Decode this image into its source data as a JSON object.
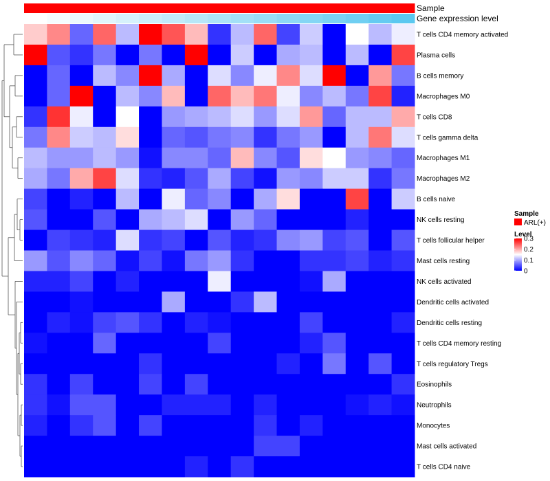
{
  "chart_data": {
    "type": "heatmap",
    "annotation_rows": [
      {
        "label": "Sample",
        "color": "#ff0000"
      },
      {
        "label": "Gene expression level",
        "gradient": [
          "#ffffff",
          "#5bc8f0"
        ]
      }
    ],
    "row_labels": [
      "T cells CD4 memory activated",
      "Plasma cells",
      "B cells memory",
      "Macrophages M0",
      "T cells CD8",
      "T cells gamma delta",
      "Macrophages M1",
      "Macrophages M2",
      "B cells naive",
      "NK cells resting",
      "T cells follicular helper",
      "Mast cells resting",
      "NK cells activated",
      "Dendritic cells activated",
      "Dendritic cells resting",
      "T cells CD4 memory resting",
      "T cells regulatory  Tregs",
      "Eosinophils",
      "Neutrophils",
      "Monocytes",
      "Mast cells activated",
      "T cells CD4 naive"
    ],
    "values": [
      [
        0.18,
        0.22,
        0.06,
        0.24,
        0.11,
        0.3,
        0.25,
        0.19,
        0.03,
        0.11,
        0.24,
        0.04,
        0.12,
        0.0,
        0.15,
        0.11,
        0.14
      ],
      [
        0.3,
        0.05,
        0.03,
        0.07,
        0.0,
        0.07,
        0.0,
        0.3,
        0.0,
        0.12,
        0.0,
        0.1,
        0.11,
        0.0,
        0.11,
        0.0,
        0.26
      ],
      [
        0.0,
        0.06,
        0.0,
        0.11,
        0.08,
        0.3,
        0.1,
        0.0,
        0.13,
        0.08,
        0.14,
        0.22,
        0.13,
        0.3,
        0.0,
        0.21,
        0.07
      ],
      [
        0.0,
        0.06,
        0.3,
        0.0,
        0.11,
        0.08,
        0.19,
        0.0,
        0.24,
        0.19,
        0.23,
        0.14,
        0.08,
        0.11,
        0.07,
        0.26,
        0.02
      ],
      [
        0.03,
        0.27,
        0.14,
        0.0,
        0.15,
        0.0,
        0.09,
        0.1,
        0.11,
        0.13,
        0.09,
        0.13,
        0.21,
        0.06,
        0.11,
        0.11,
        0.2
      ],
      [
        0.07,
        0.22,
        0.12,
        0.11,
        0.17,
        0.0,
        0.06,
        0.05,
        0.07,
        0.08,
        0.03,
        0.07,
        0.09,
        0.0,
        0.11,
        0.23,
        0.13
      ],
      [
        0.11,
        0.09,
        0.09,
        0.11,
        0.09,
        0.01,
        0.08,
        0.08,
        0.06,
        0.19,
        0.08,
        0.05,
        0.17,
        0.15,
        0.09,
        0.08,
        0.06
      ],
      [
        0.1,
        0.07,
        0.2,
        0.26,
        0.13,
        0.03,
        0.02,
        0.05,
        0.1,
        0.04,
        0.01,
        0.09,
        0.08,
        0.12,
        0.12,
        0.03,
        0.07
      ],
      [
        0.04,
        0.0,
        0.02,
        0.0,
        0.11,
        0.0,
        0.14,
        0.06,
        0.08,
        0.0,
        0.1,
        0.17,
        0.0,
        0.0,
        0.26,
        0.0,
        0.12
      ],
      [
        0.05,
        0.0,
        0.0,
        0.05,
        0.0,
        0.1,
        0.11,
        0.13,
        0.0,
        0.09,
        0.06,
        0.0,
        0.0,
        0.0,
        0.02,
        0.0,
        0.0
      ],
      [
        0.0,
        0.04,
        0.03,
        0.02,
        0.13,
        0.03,
        0.04,
        0.0,
        0.05,
        0.02,
        0.03,
        0.08,
        0.09,
        0.04,
        0.05,
        0.0,
        0.05
      ],
      [
        0.09,
        0.05,
        0.08,
        0.06,
        0.01,
        0.04,
        0.01,
        0.07,
        0.09,
        0.03,
        0.0,
        0.0,
        0.03,
        0.03,
        0.04,
        0.02,
        0.03
      ],
      [
        0.02,
        0.02,
        0.04,
        0.0,
        0.02,
        0.0,
        0.0,
        0.0,
        0.14,
        0.0,
        0.0,
        0.0,
        0.01,
        0.1,
        0.0,
        0.0,
        0.0
      ],
      [
        0.0,
        0.0,
        0.01,
        0.0,
        0.0,
        0.0,
        0.1,
        0.0,
        0.0,
        0.03,
        0.11,
        0.0,
        0.0,
        0.0,
        0.0,
        0.0,
        0.0
      ],
      [
        0.0,
        0.02,
        0.01,
        0.04,
        0.05,
        0.03,
        0.0,
        0.02,
        0.01,
        0.0,
        0.0,
        0.0,
        0.04,
        0.0,
        0.0,
        0.0,
        0.02
      ],
      [
        0.01,
        0.0,
        0.0,
        0.06,
        0.0,
        0.0,
        0.0,
        0.0,
        0.04,
        0.0,
        0.0,
        0.0,
        0.02,
        0.05,
        0.0,
        0.0,
        0.0
      ],
      [
        0.0,
        0.0,
        0.0,
        0.0,
        0.0,
        0.03,
        0.0,
        0.0,
        0.0,
        0.0,
        0.0,
        0.02,
        0.0,
        0.07,
        0.0,
        0.05,
        0.0
      ],
      [
        0.03,
        0.0,
        0.04,
        0.0,
        0.0,
        0.04,
        0.0,
        0.04,
        0.0,
        0.0,
        0.0,
        0.0,
        0.0,
        0.0,
        0.0,
        0.0,
        0.03
      ],
      [
        0.03,
        0.01,
        0.05,
        0.05,
        0.0,
        0.0,
        0.02,
        0.02,
        0.02,
        0.0,
        0.02,
        0.0,
        0.0,
        0.0,
        0.01,
        0.02,
        0.01
      ],
      [
        0.02,
        0.0,
        0.03,
        0.05,
        0.0,
        0.04,
        0.0,
        0.0,
        0.0,
        0.0,
        0.03,
        0.0,
        0.02,
        0.0,
        0.0,
        0.0,
        0.0
      ],
      [
        0.0,
        0.0,
        0.0,
        0.0,
        0.0,
        0.0,
        0.0,
        0.0,
        0.0,
        0.0,
        0.04,
        0.04,
        0.0,
        0.0,
        0.0,
        0.0,
        0.0
      ],
      [
        0.0,
        0.0,
        0.0,
        0.0,
        0.0,
        0.0,
        0.0,
        0.02,
        0.0,
        0.03,
        0.0,
        0.0,
        0.0,
        0.0,
        0.0,
        0.0,
        0.0
      ]
    ],
    "color_scale": {
      "low": "#0000ff",
      "mid": "#ffffff",
      "high": "#ff0000",
      "range": [
        0,
        0.3
      ],
      "mid_value": 0.15
    },
    "legend": {
      "sample_title": "Sample",
      "sample_entry": "ARL(+)",
      "sample_color": "#ff0000",
      "level_title": "Level",
      "level_ticks": [
        {
          "value": 0.3,
          "label": "0.3"
        },
        {
          "value": 0.2,
          "label": "0.2"
        },
        {
          "value": 0.1,
          "label": "0.1"
        },
        {
          "value": 0,
          "label": "0"
        }
      ]
    },
    "row_dendrogram": true,
    "legend_position": "right"
  }
}
